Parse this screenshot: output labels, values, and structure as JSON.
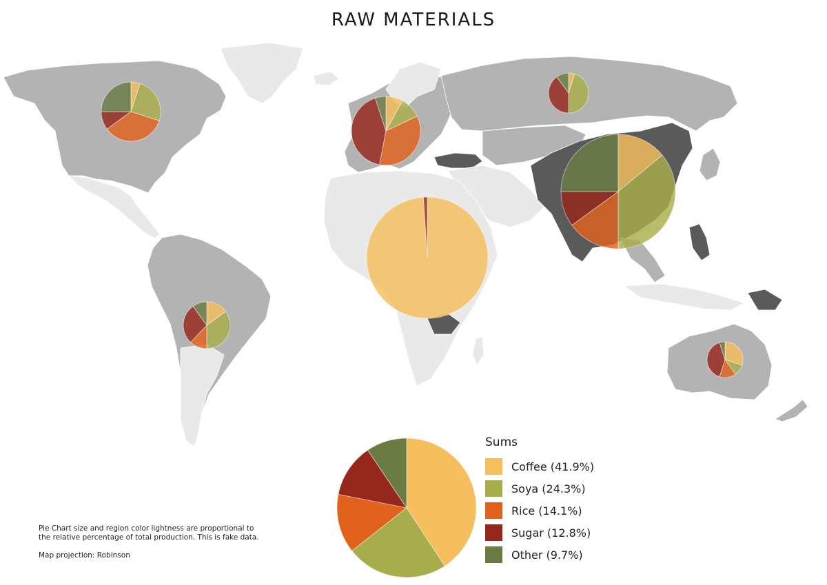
{
  "title": "RAW MATERIALS",
  "legend": {
    "title": "Sums",
    "items": [
      {
        "label": "Coffee (41.9%)",
        "color": "#f4be5c"
      },
      {
        "label": "Soya (24.3%)",
        "color": "#a8ad4b"
      },
      {
        "label": "Rice (14.1%)",
        "color": "#e0621c"
      },
      {
        "label": "Sugar (12.8%)",
        "color": "#97271c"
      },
      {
        "label": "Other (9.7%)",
        "color": "#6a7c44"
      }
    ]
  },
  "note": {
    "text": "Pie Chart size and region color lightness are proportional to the relative  percentage of total production. This is fake data.",
    "projection": "Map projection: Robinson"
  },
  "chart_data": {
    "type": "pie",
    "title": "RAW MATERIALS",
    "categories": [
      "Coffee",
      "Soya",
      "Rice",
      "Sugar",
      "Other"
    ],
    "summary": {
      "name": "Sums",
      "values": [
        41.9,
        24.3,
        14.1,
        12.8,
        9.7
      ]
    },
    "region_pies": [
      {
        "region": "North America",
        "values": [
          5,
          25,
          35,
          10,
          25
        ]
      },
      {
        "region": "Europe",
        "values": [
          8,
          10,
          35,
          42,
          5
        ]
      },
      {
        "region": "Russia",
        "values": [
          5,
          45,
          0,
          40,
          10
        ]
      },
      {
        "region": "Asia",
        "values": [
          14,
          36,
          15,
          10,
          25
        ]
      },
      {
        "region": "Africa",
        "values": [
          99,
          0,
          0,
          1,
          0
        ]
      },
      {
        "region": "South America",
        "values": [
          15,
          35,
          12,
          28,
          10
        ]
      },
      {
        "region": "Australia",
        "values": [
          30,
          10,
          15,
          40,
          5
        ]
      }
    ]
  }
}
